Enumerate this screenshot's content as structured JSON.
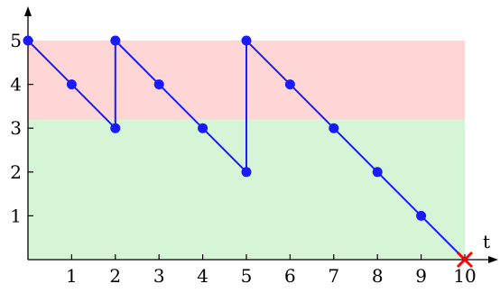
{
  "chart_data": {
    "type": "line",
    "xlabel": "t",
    "ylabel": "",
    "xlim": [
      0,
      10
    ],
    "ylim": [
      0,
      5
    ],
    "x_ticks": [
      1,
      2,
      3,
      4,
      5,
      6,
      7,
      8,
      9,
      10
    ],
    "y_ticks": [
      1,
      2,
      3,
      4,
      5
    ],
    "bands": [
      {
        "name": "",
        "from": 3.2,
        "to": 5,
        "color": "#ffd6d6"
      },
      {
        "name": "",
        "from": 0,
        "to": 3.2,
        "color": "#d6f5d6"
      }
    ],
    "series": [
      {
        "color": "#1a1aff",
        "points": [
          {
            "x": 0,
            "y": 5
          },
          {
            "x": 1,
            "y": 4
          },
          {
            "x": 2,
            "y": 3
          },
          {
            "x": 2,
            "y": 5
          },
          {
            "x": 3,
            "y": 4
          },
          {
            "x": 4,
            "y": 3
          },
          {
            "x": 5,
            "y": 2
          },
          {
            "x": 5,
            "y": 5
          },
          {
            "x": 6,
            "y": 4
          },
          {
            "x": 7,
            "y": 3
          },
          {
            "x": 8,
            "y": 2
          },
          {
            "x": 9,
            "y": 1
          },
          {
            "x": 10,
            "y": 0
          }
        ],
        "end_marker": {
          "x": 10,
          "y": 0,
          "symbol": "cross",
          "color": "#ff0000"
        }
      }
    ],
    "grid": false,
    "legend": "none"
  }
}
